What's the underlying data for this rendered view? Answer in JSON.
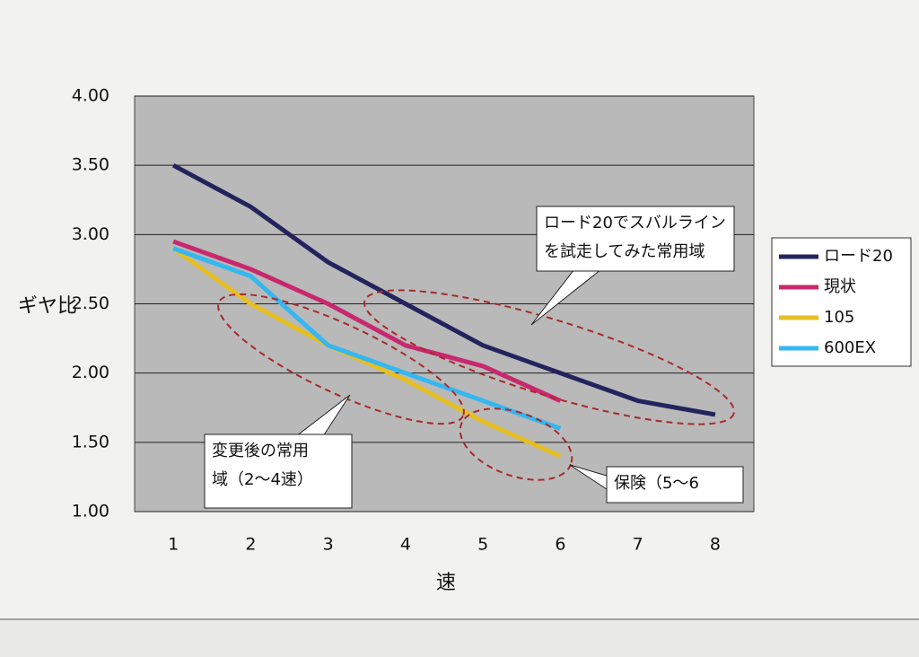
{
  "chart_data": {
    "type": "line",
    "categories": [
      "1",
      "2",
      "3",
      "4",
      "5",
      "6",
      "7",
      "8"
    ],
    "series": [
      {
        "name": "ロード20",
        "color": "#23235e",
        "values": [
          3.5,
          3.2,
          2.8,
          2.5,
          2.2,
          2.0,
          1.8,
          1.7
        ]
      },
      {
        "name": "現状",
        "color": "#c8286e",
        "values": [
          2.95,
          2.75,
          2.5,
          2.2,
          2.05,
          1.8,
          null,
          null
        ]
      },
      {
        "name": "105",
        "color": "#e6bf22",
        "values": [
          2.9,
          2.5,
          2.2,
          1.95,
          1.65,
          1.4,
          null,
          null
        ]
      },
      {
        "name": "600EX",
        "color": "#35b7ef",
        "values": [
          2.9,
          2.7,
          2.2,
          2.0,
          1.8,
          1.6,
          null,
          null
        ]
      }
    ],
    "ylim": [
      1,
      4
    ],
    "yticks": [
      {
        "value": 1,
        "label": "1.00"
      },
      {
        "value": 1.5,
        "label": "1.50"
      },
      {
        "value": 2,
        "label": "2.00"
      },
      {
        "value": 2.5,
        "label": "2.50"
      },
      {
        "value": 3,
        "label": "3.00"
      },
      {
        "value": 3.5,
        "label": "3.50"
      },
      {
        "value": 4,
        "label": "4.00"
      }
    ],
    "grid": true,
    "y_label": "ギヤ比",
    "x_label": "速",
    "legend": "right",
    "annotations": [
      [
        "ロード20でスバルライン",
        "を試走してみた常用域"
      ],
      [
        "変更後の常用",
        "域（2〜4速）"
      ],
      [
        "保険（5〜6"
      ]
    ]
  }
}
